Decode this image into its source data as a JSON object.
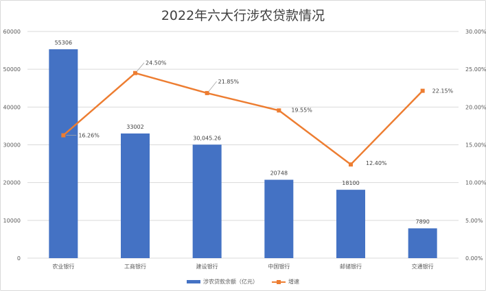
{
  "title": "2022年六大行涉农贷款情况",
  "chart_data": {
    "type": "bar",
    "title": "2022年六大行涉农贷款情况",
    "categories": [
      "农业银行",
      "工商银行",
      "建设银行",
      "中国银行",
      "邮储银行",
      "交通银行"
    ],
    "series": [
      {
        "name": "涉农贷款余额（亿元）",
        "type": "bar",
        "axis": "left",
        "values": [
          55306,
          33002,
          30045.26,
          20748,
          18100,
          7890
        ],
        "labels": [
          "55306",
          "33002",
          "30,045.26",
          "20748",
          "18100",
          "7890"
        ],
        "color": "#4472c4"
      },
      {
        "name": "增速",
        "type": "line",
        "axis": "right",
        "values": [
          16.26,
          24.5,
          21.85,
          19.55,
          12.4,
          22.15
        ],
        "labels": [
          "16.26%",
          "24.50%",
          "21.85%",
          "19.55%",
          "12.40%",
          "22.15%"
        ],
        "color": "#ed7d31"
      }
    ],
    "y_left": {
      "min": 0,
      "max": 60000,
      "ticks": [
        "0",
        "10000",
        "20000",
        "30000",
        "40000",
        "50000",
        "60000"
      ]
    },
    "y_right": {
      "min": 0,
      "max": 30,
      "ticks": [
        "0.00%",
        "5.00%",
        "10.00%",
        "15.00%",
        "20.00%",
        "25.00%",
        "30.00%"
      ]
    },
    "grid": true,
    "legend_position": "bottom"
  }
}
